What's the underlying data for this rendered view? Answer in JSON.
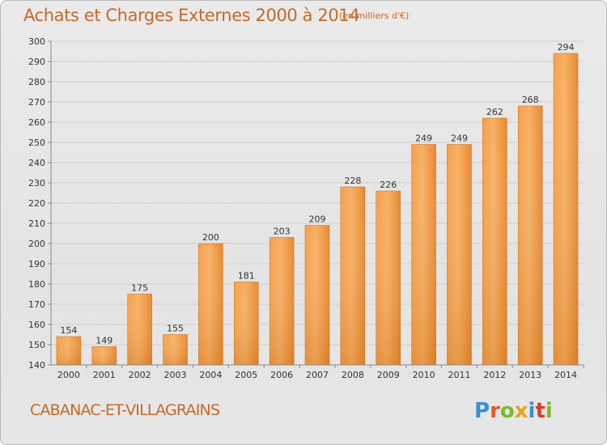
{
  "header": {
    "title": "Achats et Charges Externes 2000 à 2014",
    "unit": "(en milliers d'€)"
  },
  "footer": {
    "commune": "CABANAC-ET-VILLAGRAINS",
    "logo": "Proxiti"
  },
  "colors": {
    "text_accent": "#c46a2a",
    "bar_light": "#f7a550",
    "bar_dark": "#e0801e",
    "bar_edge": "#c86a16",
    "gridline": "#cfcfcf",
    "axis": "#8a8a8a"
  },
  "chart_data": {
    "type": "bar",
    "title": "Achats et Charges Externes 2000 à 2014",
    "subtitle": "(en milliers d'€)",
    "xlabel": "",
    "ylabel": "",
    "categories": [
      "2000",
      "2001",
      "2002",
      "2003",
      "2004",
      "2005",
      "2006",
      "2007",
      "2008",
      "2009",
      "2010",
      "2011",
      "2012",
      "2013",
      "2014"
    ],
    "values": [
      154,
      149,
      175,
      155,
      200,
      181,
      203,
      209,
      228,
      226,
      249,
      249,
      262,
      268,
      294
    ],
    "ylim": [
      140,
      300
    ],
    "yticks": [
      140,
      150,
      160,
      170,
      180,
      190,
      200,
      210,
      220,
      230,
      240,
      250,
      260,
      270,
      280,
      290,
      300
    ],
    "grid": true,
    "legend": "none"
  }
}
